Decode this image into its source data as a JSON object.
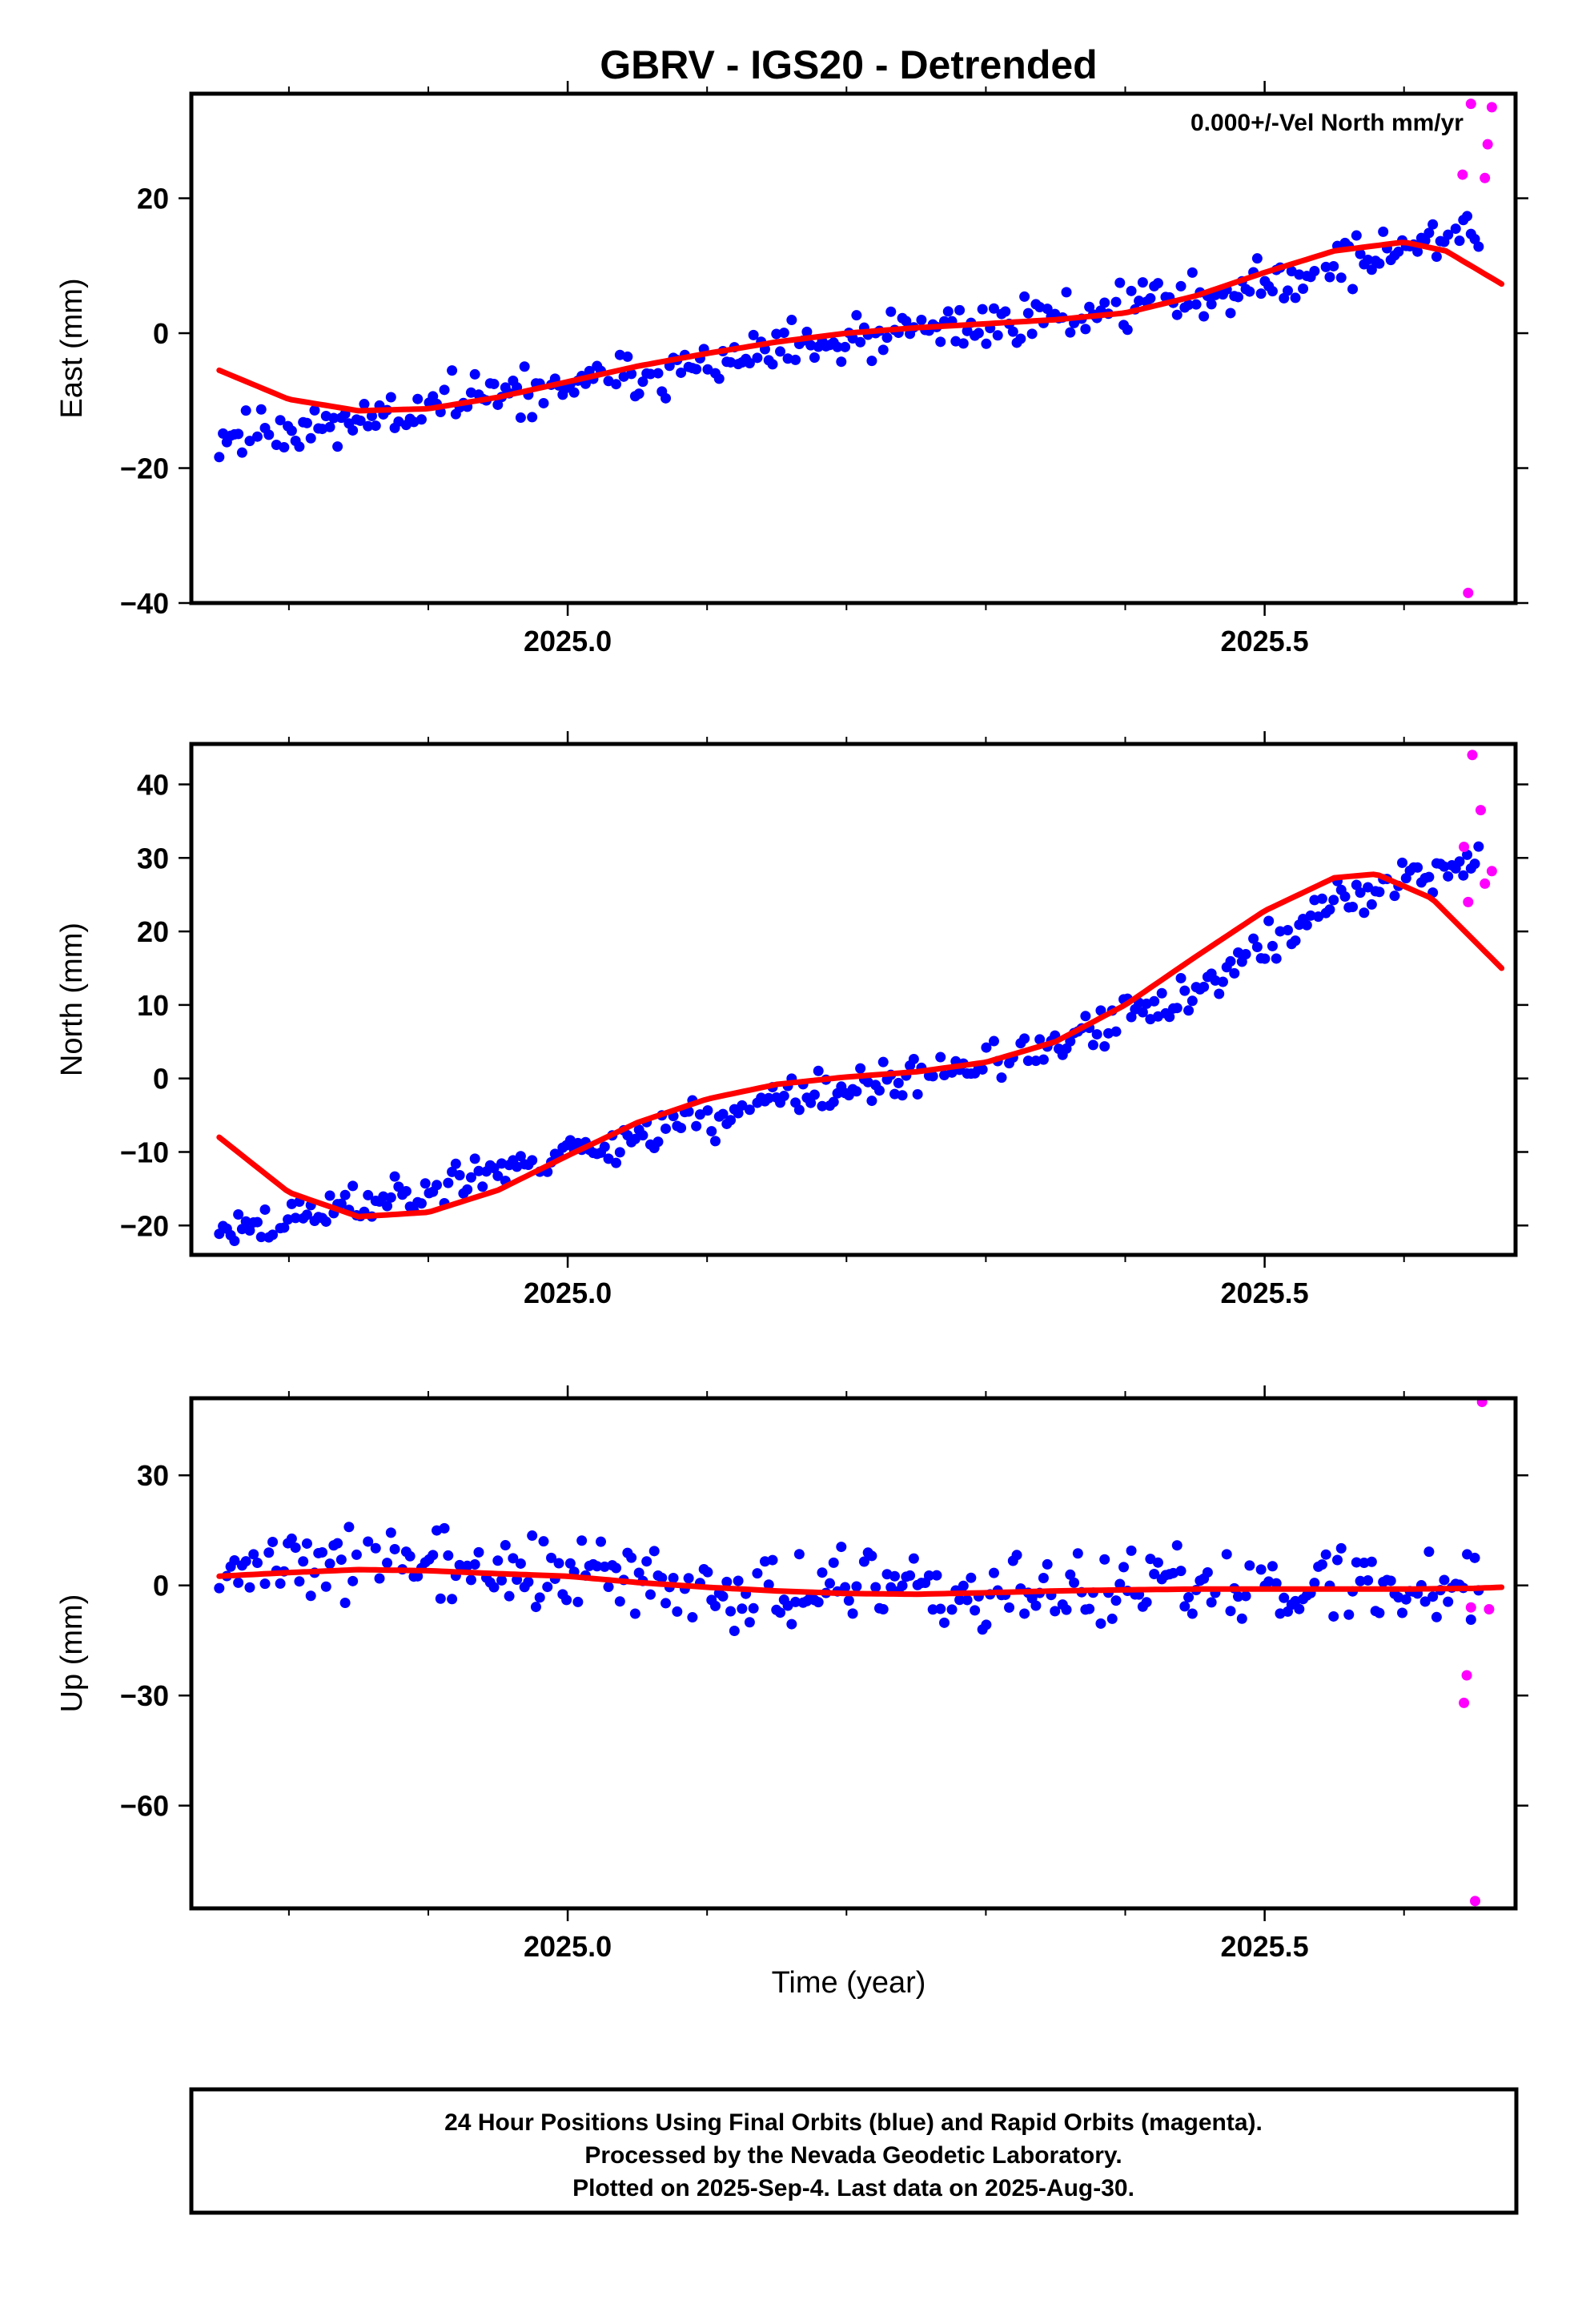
{
  "title": "GBRV - IGS20 - Detrended",
  "xlabel": "Time (year)",
  "annotation": "0.000+/-Vel North mm/yr",
  "footer": [
    "24 Hour Positions Using Final Orbits (blue) and Rapid Orbits (magenta).",
    "Processed by the Nevada Geodetic Laboratory.",
    "Plotted on 2025-Sep-4. Last data on 2025-Aug-30."
  ],
  "colors": {
    "final": "#0000ff",
    "rapid": "#ff00ff",
    "fit": "#ff0000",
    "frame": "#000000"
  },
  "chart_data": [
    {
      "type": "scatter",
      "title": "GBRV - IGS20 - Detrended",
      "ylabel": "East (mm)",
      "xlim": [
        2024.73,
        2025.68
      ],
      "ylim": [
        -40,
        35.5
      ],
      "x_ticks": [
        2025.0,
        2025.5
      ],
      "x_tick_labels": [
        "2025.0",
        "2025.5"
      ],
      "y_ticks": [
        -40,
        -20,
        0,
        20
      ],
      "y_tick_labels": [
        "−40",
        "−20",
        "0",
        "20"
      ],
      "annotation": "0.000+/-Vel North mm/yr",
      "series": [
        {
          "kind": "final",
          "trend": [
            [
              2024.75,
              -15.5
            ],
            [
              2025.0,
              -8
            ],
            [
              2025.25,
              0
            ],
            [
              2025.5,
              7
            ],
            [
              2025.65,
              15.5
            ]
          ],
          "noise": 1.8,
          "seed": 11
        },
        {
          "kind": "rapid",
          "points": [
            [
              2025.642,
              23.5
            ],
            [
              2025.646,
              -38.5
            ],
            [
              2025.648,
              34.0
            ],
            [
              2025.658,
              23.0
            ],
            [
              2025.66,
              28.0
            ],
            [
              2025.663,
              33.5
            ]
          ]
        },
        {
          "kind": "fit",
          "points": [
            [
              2024.75,
              -5.5
            ],
            [
              2024.8,
              -9.8
            ],
            [
              2024.85,
              -11.5
            ],
            [
              2024.9,
              -11.2
            ],
            [
              2024.95,
              -9.5
            ],
            [
              2025.0,
              -7.2
            ],
            [
              2025.05,
              -4.9
            ],
            [
              2025.1,
              -3.0
            ],
            [
              2025.15,
              -1.3
            ],
            [
              2025.2,
              0.0
            ],
            [
              2025.25,
              0.8
            ],
            [
              2025.3,
              1.4
            ],
            [
              2025.35,
              2.0
            ],
            [
              2025.4,
              3.0
            ],
            [
              2025.45,
              5.5
            ],
            [
              2025.5,
              9.0
            ],
            [
              2025.55,
              12.2
            ],
            [
              2025.6,
              13.5
            ],
            [
              2025.63,
              12.2
            ],
            [
              2025.67,
              7.3
            ]
          ]
        }
      ]
    },
    {
      "type": "scatter",
      "ylabel": "North (mm)",
      "xlim": [
        2024.73,
        2025.68
      ],
      "ylim": [
        -24,
        45.5
      ],
      "x_ticks": [
        2025.0,
        2025.5
      ],
      "x_tick_labels": [
        "2025.0",
        "2025.5"
      ],
      "y_ticks": [
        -20,
        -10,
        0,
        10,
        20,
        30,
        40
      ],
      "y_tick_labels": [
        "−20",
        "−10",
        "0",
        "10",
        "20",
        "30",
        "40"
      ],
      "series": [
        {
          "kind": "final",
          "trend": [
            [
              2024.75,
              -21
            ],
            [
              2024.85,
              -17
            ],
            [
              2025.0,
              -10
            ],
            [
              2025.15,
              -3
            ],
            [
              2025.25,
              0
            ],
            [
              2025.35,
              4
            ],
            [
              2025.45,
              12
            ],
            [
              2025.55,
              24
            ],
            [
              2025.65,
              30
            ]
          ],
          "noise": 1.4,
          "seed": 23
        },
        {
          "kind": "rapid",
          "points": [
            [
              2025.643,
              31.5
            ],
            [
              2025.646,
              24.0
            ],
            [
              2025.649,
              44.0
            ],
            [
              2025.655,
              36.5
            ],
            [
              2025.658,
              26.5
            ],
            [
              2025.663,
              28.2
            ]
          ]
        },
        {
          "kind": "fit",
          "points": [
            [
              2024.75,
              -8.0
            ],
            [
              2024.8,
              -15.5
            ],
            [
              2024.85,
              -18.8
            ],
            [
              2024.9,
              -18.2
            ],
            [
              2024.95,
              -15.2
            ],
            [
              2025.0,
              -10.5
            ],
            [
              2025.05,
              -6.0
            ],
            [
              2025.1,
              -2.8
            ],
            [
              2025.15,
              -0.8
            ],
            [
              2025.2,
              0.2
            ],
            [
              2025.25,
              0.9
            ],
            [
              2025.3,
              2.2
            ],
            [
              2025.35,
              5.0
            ],
            [
              2025.4,
              10.0
            ],
            [
              2025.45,
              16.5
            ],
            [
              2025.5,
              22.8
            ],
            [
              2025.55,
              27.3
            ],
            [
              2025.58,
              27.8
            ],
            [
              2025.62,
              24.5
            ],
            [
              2025.67,
              15.0
            ]
          ]
        }
      ]
    },
    {
      "type": "scatter",
      "ylabel": "Up (mm)",
      "xlabel": "Time (year)",
      "xlim": [
        2024.73,
        2025.68
      ],
      "ylim": [
        -88,
        51
      ],
      "x_ticks": [
        2025.0,
        2025.5
      ],
      "x_tick_labels": [
        "2025.0",
        "2025.5"
      ],
      "y_ticks": [
        -60,
        -30,
        0,
        30
      ],
      "y_tick_labels": [
        "−60",
        "−30",
        "0",
        "30"
      ],
      "series": [
        {
          "kind": "final",
          "trend": [
            [
              2024.75,
              6
            ],
            [
              2024.9,
              5
            ],
            [
              2025.1,
              0
            ],
            [
              2025.3,
              -3
            ],
            [
              2025.5,
              0
            ],
            [
              2025.65,
              0
            ]
          ],
          "noise": 5.0,
          "seed": 37
        },
        {
          "kind": "rapid",
          "points": [
            [
              2025.643,
              -32.0
            ],
            [
              2025.645,
              -24.5
            ],
            [
              2025.648,
              -6.0
            ],
            [
              2025.651,
              -86.0
            ],
            [
              2025.656,
              50.0
            ],
            [
              2025.661,
              -6.5
            ]
          ]
        },
        {
          "kind": "fit",
          "points": [
            [
              2024.75,
              2.5
            ],
            [
              2024.8,
              3.5
            ],
            [
              2024.85,
              4.3
            ],
            [
              2024.9,
              4.0
            ],
            [
              2024.95,
              3.2
            ],
            [
              2025.0,
              2.5
            ],
            [
              2025.05,
              0.8
            ],
            [
              2025.1,
              -0.5
            ],
            [
              2025.15,
              -1.5
            ],
            [
              2025.2,
              -2.2
            ],
            [
              2025.25,
              -2.4
            ],
            [
              2025.3,
              -2.0
            ],
            [
              2025.35,
              -1.5
            ],
            [
              2025.4,
              -1.2
            ],
            [
              2025.45,
              -1.0
            ],
            [
              2025.5,
              -1.0
            ],
            [
              2025.55,
              -1.0
            ],
            [
              2025.6,
              -1.0
            ],
            [
              2025.65,
              -0.8
            ],
            [
              2025.67,
              -0.5
            ]
          ]
        }
      ]
    }
  ]
}
